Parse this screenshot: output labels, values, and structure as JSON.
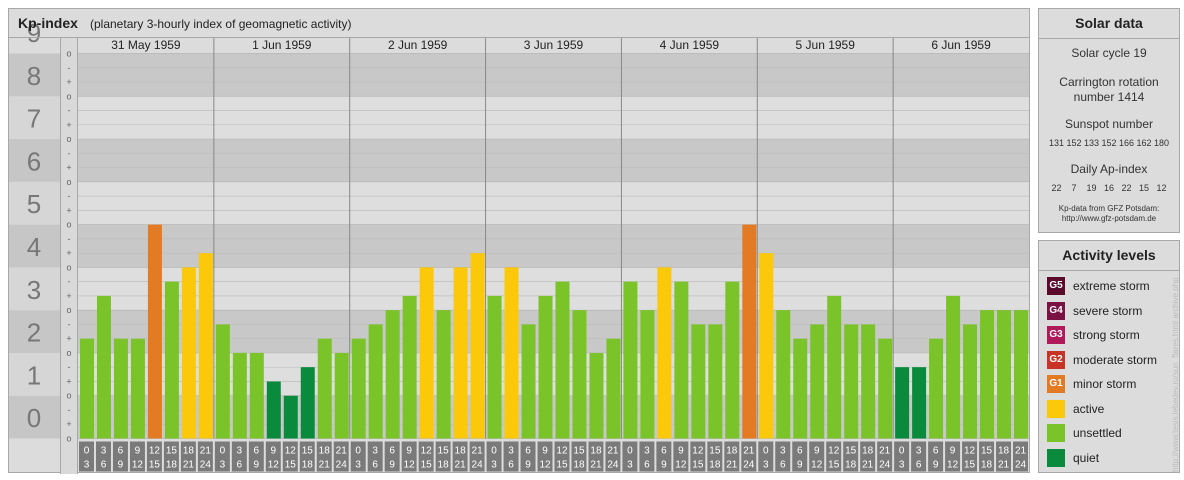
{
  "header": {
    "title": "Kp-index",
    "subtitle": "(planetary 3-hourly index of geomagnetic activity)"
  },
  "chart_data": {
    "type": "bar",
    "ylim": [
      0,
      9
    ],
    "y_ticks": [
      "0",
      "1",
      "2",
      "3",
      "4",
      "5",
      "6",
      "7",
      "8",
      "9"
    ],
    "y_minor_labels": [
      "o",
      "+",
      "-"
    ],
    "days": [
      "31 May 1959",
      "1 Jun 1959",
      "2 Jun 1959",
      "3 Jun 1959",
      "4 Jun 1959",
      "5 Jun 1959",
      "6 Jun 1959"
    ],
    "interval_start_labels": [
      "0",
      "3",
      "6",
      "9",
      "12",
      "15",
      "18",
      "21"
    ],
    "interval_end_labels": [
      "3",
      "6",
      "9",
      "12",
      "15",
      "18",
      "21",
      "24"
    ],
    "values": [
      2.333,
      3.333,
      2.333,
      2.333,
      5.0,
      3.667,
      4.0,
      4.333,
      2.667,
      2.0,
      2.0,
      1.333,
      1.0,
      1.667,
      2.333,
      2.0,
      2.333,
      2.667,
      3.0,
      3.333,
      4.0,
      3.0,
      4.0,
      4.333,
      3.333,
      4.0,
      2.667,
      3.333,
      3.667,
      3.0,
      2.0,
      2.333,
      3.667,
      3.0,
      4.0,
      3.667,
      2.667,
      2.667,
      3.667,
      5.0,
      4.333,
      3.0,
      2.333,
      2.667,
      3.333,
      2.667,
      2.667,
      2.333,
      1.667,
      1.667,
      2.333,
      3.333,
      2.667,
      3.0,
      3.0,
      3.0
    ],
    "colors": {
      "quiet": "#0a8a3c",
      "unsettled": "#7ac328",
      "active": "#fbc80a",
      "minor_storm": "#e27b23"
    }
  },
  "solar": {
    "title": "Solar data",
    "cycle": "Solar cycle 19",
    "carrington_1": "Carrington rotation",
    "carrington_2": "number 1414",
    "sunspot_title": "Sunspot number",
    "sunspots": "131 152 133 152 166 162 180",
    "ap_title": "Daily Ap-index",
    "ap": "22    7    19   16   22   15   12",
    "source_1": "Kp-data from GFZ Potsdam:",
    "source_2": "http://www.gfz-potsdam.de"
  },
  "levels": {
    "title": "Activity levels",
    "items": [
      {
        "code": "G5",
        "label": "extreme storm",
        "color": "#5b0a2b"
      },
      {
        "code": "G4",
        "label": "severe storm",
        "color": "#7a1243"
      },
      {
        "code": "G3",
        "label": "strong storm",
        "color": "#b0195a"
      },
      {
        "code": "G2",
        "label": "moderate storm",
        "color": "#c93226"
      },
      {
        "code": "G1",
        "label": "minor storm",
        "color": "#e27b23"
      },
      {
        "code": "",
        "label": "active",
        "color": "#fbc80a"
      },
      {
        "code": "",
        "label": "unsettled",
        "color": "#7ac328"
      },
      {
        "code": "",
        "label": "quiet",
        "color": "#0a8a3c"
      }
    ]
  },
  "watermark": "http://www.tesis.lebedev.ru/sun_flares.html   archive.php"
}
